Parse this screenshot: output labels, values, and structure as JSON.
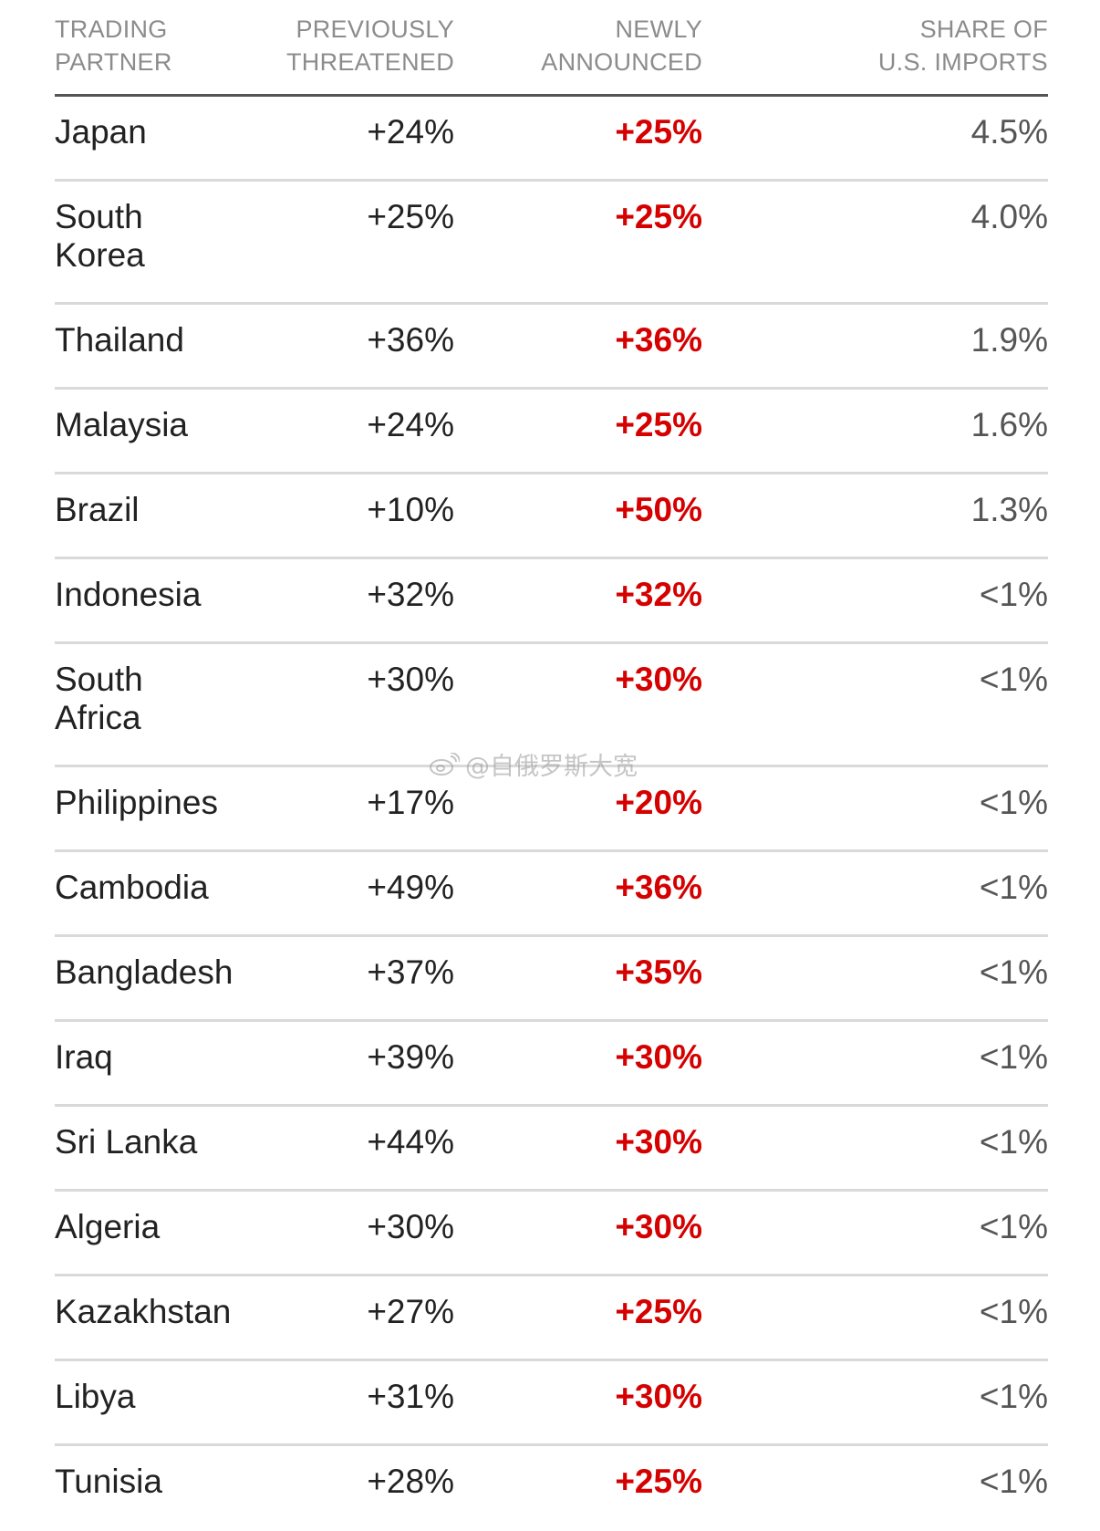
{
  "table": {
    "headers": {
      "partner": "TRADING\nPARTNER",
      "previous": "PREVIOUSLY\nTHREATENED",
      "newly": "NEWLY\nANNOUNCED",
      "share": "SHARE OF\nU.S. IMPORTS"
    },
    "rows": [
      {
        "country": "Japan",
        "previous": "+24%",
        "newly": "+25%",
        "share": "4.5%"
      },
      {
        "country": "South\nKorea",
        "previous": "+25%",
        "newly": "+25%",
        "share": "4.0%"
      },
      {
        "country": "Thailand",
        "previous": "+36%",
        "newly": "+36%",
        "share": "1.9%"
      },
      {
        "country": "Malaysia",
        "previous": "+24%",
        "newly": "+25%",
        "share": "1.6%"
      },
      {
        "country": "Brazil",
        "previous": "+10%",
        "newly": "+50%",
        "share": "1.3%"
      },
      {
        "country": "Indonesia",
        "previous": "+32%",
        "newly": "+32%",
        "share": "<1%"
      },
      {
        "country": "South\nAfrica",
        "previous": "+30%",
        "newly": "+30%",
        "share": "<1%"
      },
      {
        "country": "Philippines",
        "previous": "+17%",
        "newly": "+20%",
        "share": "<1%"
      },
      {
        "country": "Cambodia",
        "previous": "+49%",
        "newly": "+36%",
        "share": "<1%"
      },
      {
        "country": "Bangladesh",
        "previous": "+37%",
        "newly": "+35%",
        "share": "<1%"
      },
      {
        "country": "Iraq",
        "previous": "+39%",
        "newly": "+30%",
        "share": "<1%"
      },
      {
        "country": "Sri Lanka",
        "previous": "+44%",
        "newly": "+30%",
        "share": "<1%"
      },
      {
        "country": "Algeria",
        "previous": "+30%",
        "newly": "+30%",
        "share": "<1%"
      },
      {
        "country": "Kazakhstan",
        "previous": "+27%",
        "newly": "+25%",
        "share": "<1%"
      },
      {
        "country": "Libya",
        "previous": "+31%",
        "newly": "+30%",
        "share": "<1%"
      },
      {
        "country": "Tunisia",
        "previous": "+28%",
        "newly": "+25%",
        "share": "<1%"
      }
    ]
  },
  "watermark": {
    "text": "@自俄罗斯大宽",
    "icon": "weibo-icon"
  },
  "colors": {
    "highlight": "#d50000",
    "header": "#8c8c8c",
    "rule": "#d9d9d9"
  },
  "chart_data": {
    "type": "table",
    "columns": [
      "TRADING PARTNER",
      "PREVIOUSLY THREATENED",
      "NEWLY ANNOUNCED",
      "SHARE OF U.S. IMPORTS"
    ],
    "rows": [
      [
        "Japan",
        "+24%",
        "+25%",
        "4.5%"
      ],
      [
        "South Korea",
        "+25%",
        "+25%",
        "4.0%"
      ],
      [
        "Thailand",
        "+36%",
        "+36%",
        "1.9%"
      ],
      [
        "Malaysia",
        "+24%",
        "+25%",
        "1.6%"
      ],
      [
        "Brazil",
        "+10%",
        "+50%",
        "1.3%"
      ],
      [
        "Indonesia",
        "+32%",
        "+32%",
        "<1%"
      ],
      [
        "South Africa",
        "+30%",
        "+30%",
        "<1%"
      ],
      [
        "Philippines",
        "+17%",
        "+20%",
        "<1%"
      ],
      [
        "Cambodia",
        "+49%",
        "+36%",
        "<1%"
      ],
      [
        "Bangladesh",
        "+37%",
        "+35%",
        "<1%"
      ],
      [
        "Iraq",
        "+39%",
        "+30%",
        "<1%"
      ],
      [
        "Sri Lanka",
        "+44%",
        "+30%",
        "<1%"
      ],
      [
        "Algeria",
        "+30%",
        "+30%",
        "<1%"
      ],
      [
        "Kazakhstan",
        "+27%",
        "+25%",
        "<1%"
      ],
      [
        "Libya",
        "+31%",
        "+30%",
        "<1%"
      ],
      [
        "Tunisia",
        "+28%",
        "+25%",
        "<1%"
      ]
    ]
  }
}
